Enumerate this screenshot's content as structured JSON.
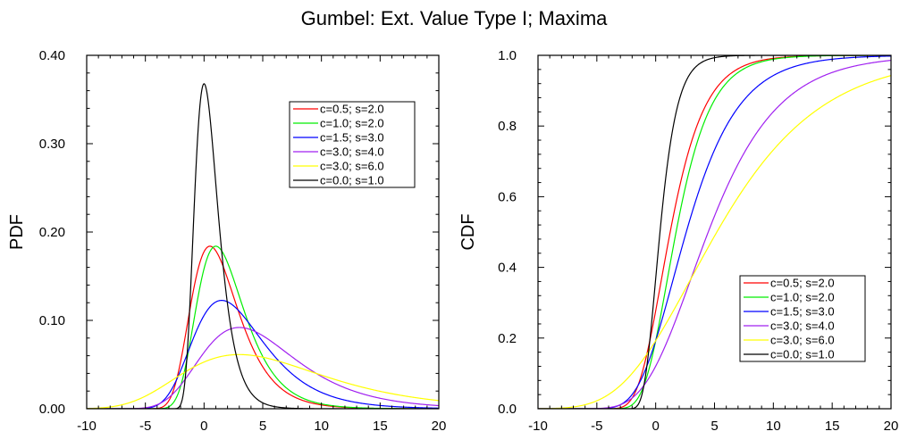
{
  "title": "Gumbel: Ext. Value Type I; Maxima",
  "chart_data": [
    {
      "type": "line",
      "function": "pdf",
      "ylabel": "PDF",
      "xlabel": "",
      "xlim": [
        -10,
        20
      ],
      "ylim": [
        0,
        0.4
      ],
      "xticks": [
        "-10",
        "-5",
        "0",
        "5",
        "10",
        "15",
        "20"
      ],
      "xtick_values": [
        -10,
        -5,
        0,
        5,
        10,
        15,
        20
      ],
      "yticks": [
        "0.00",
        "0.10",
        "0.20",
        "0.30",
        "0.40"
      ],
      "ytick_values": [
        0,
        0.1,
        0.2,
        0.3,
        0.4
      ],
      "legend_position": "top-right",
      "series": [
        {
          "name": "c=0.5; s=2.0",
          "c": 0.5,
          "s": 2.0,
          "color": "#ff0000"
        },
        {
          "name": "c=1.0; s=2.0",
          "c": 1.0,
          "s": 2.0,
          "color": "#00ee00"
        },
        {
          "name": "c=1.5; s=3.0",
          "c": 1.5,
          "s": 3.0,
          "color": "#0000ff"
        },
        {
          "name": "c=3.0; s=4.0",
          "c": 3.0,
          "s": 4.0,
          "color": "#a020f0"
        },
        {
          "name": "c=3.0; s=6.0",
          "c": 3.0,
          "s": 6.0,
          "color": "#ffff00"
        },
        {
          "name": "c=0.0; s=1.0",
          "c": 0.0,
          "s": 1.0,
          "color": "#000000"
        }
      ]
    },
    {
      "type": "line",
      "function": "cdf",
      "ylabel": "CDF",
      "xlabel": "",
      "xlim": [
        -10,
        20
      ],
      "ylim": [
        0,
        1
      ],
      "xticks": [
        "-10",
        "-5",
        "0",
        "5",
        "10",
        "15",
        "20"
      ],
      "xtick_values": [
        -10,
        -5,
        0,
        5,
        10,
        15,
        20
      ],
      "yticks": [
        "0.0",
        "0.2",
        "0.4",
        "0.6",
        "0.8",
        "1.0"
      ],
      "ytick_values": [
        0,
        0.2,
        0.4,
        0.6,
        0.8,
        1.0
      ],
      "legend_position": "bottom-right",
      "series": [
        {
          "name": "c=0.5; s=2.0",
          "c": 0.5,
          "s": 2.0,
          "color": "#ff0000"
        },
        {
          "name": "c=1.0; s=2.0",
          "c": 1.0,
          "s": 2.0,
          "color": "#00ee00"
        },
        {
          "name": "c=1.5; s=3.0",
          "c": 1.5,
          "s": 3.0,
          "color": "#0000ff"
        },
        {
          "name": "c=3.0; s=4.0",
          "c": 3.0,
          "s": 4.0,
          "color": "#a020f0"
        },
        {
          "name": "c=3.0; s=6.0",
          "c": 3.0,
          "s": 6.0,
          "color": "#ffff00"
        },
        {
          "name": "c=0.0; s=1.0",
          "c": 0.0,
          "s": 1.0,
          "color": "#000000"
        }
      ]
    }
  ]
}
